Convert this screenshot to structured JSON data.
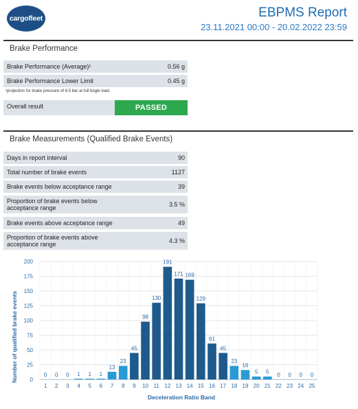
{
  "header": {
    "logo_text": "cargofleet",
    "title": "EBPMS Report",
    "date_range": "23.11.2021 00:00 - 20.02.2022 23:59"
  },
  "brake_performance": {
    "title": "Brake Performance",
    "rows": [
      {
        "label": "Brake Performance (Average)¹",
        "value": "0.56 g"
      },
      {
        "label": "Brake Performance Lower Limit",
        "value": "0.45 g"
      }
    ],
    "footnote": "¹projection for brake pressure of 6.5 bar at full bogie load.",
    "overall_label": "Overall result",
    "overall_value": "PASSED"
  },
  "brake_measurements": {
    "title": "Brake Measurements (Qualified Brake Events)",
    "rows": [
      {
        "label": "Days in report interval",
        "value": "90"
      },
      {
        "label": "Total number of brake events",
        "value": "1127"
      },
      {
        "label": "Brake events below acceptance range",
        "value": "39"
      },
      {
        "label": "Proportion of brake events below acceptance range",
        "value": "3.5 %"
      },
      {
        "label": "Brake events above acceptance range",
        "value": "49"
      },
      {
        "label": "Proportion of brake events above acceptance range",
        "value": "4.3 %"
      }
    ]
  },
  "colors": {
    "bar_dark": "#1f5a8c",
    "bar_light": "#2a9ad6",
    "passed_green": "#2ea84f",
    "title_blue": "#1f6cb3"
  },
  "chart_data": {
    "type": "bar",
    "categories": [
      "1",
      "2",
      "3",
      "4",
      "5",
      "6",
      "7",
      "8",
      "9",
      "10",
      "11",
      "12",
      "13",
      "14",
      "15",
      "16",
      "17",
      "18",
      "19",
      "20",
      "21",
      "22",
      "23",
      "24",
      "25"
    ],
    "values": [
      0,
      0,
      0,
      1,
      1,
      1,
      13,
      23,
      45,
      98,
      130,
      191,
      171,
      169,
      129,
      61,
      45,
      23,
      16,
      5,
      5,
      0,
      0,
      0,
      0
    ],
    "highlight_categories": [
      "9",
      "10",
      "11",
      "12",
      "13",
      "14",
      "15",
      "16",
      "17"
    ],
    "xlabel": "Deceleration Ratio Band",
    "ylabel": "Number of qualified brake events",
    "ylim": [
      0,
      200
    ],
    "yticks": [
      0,
      25,
      50,
      75,
      100,
      125,
      150,
      175,
      200
    ],
    "grid": true
  }
}
